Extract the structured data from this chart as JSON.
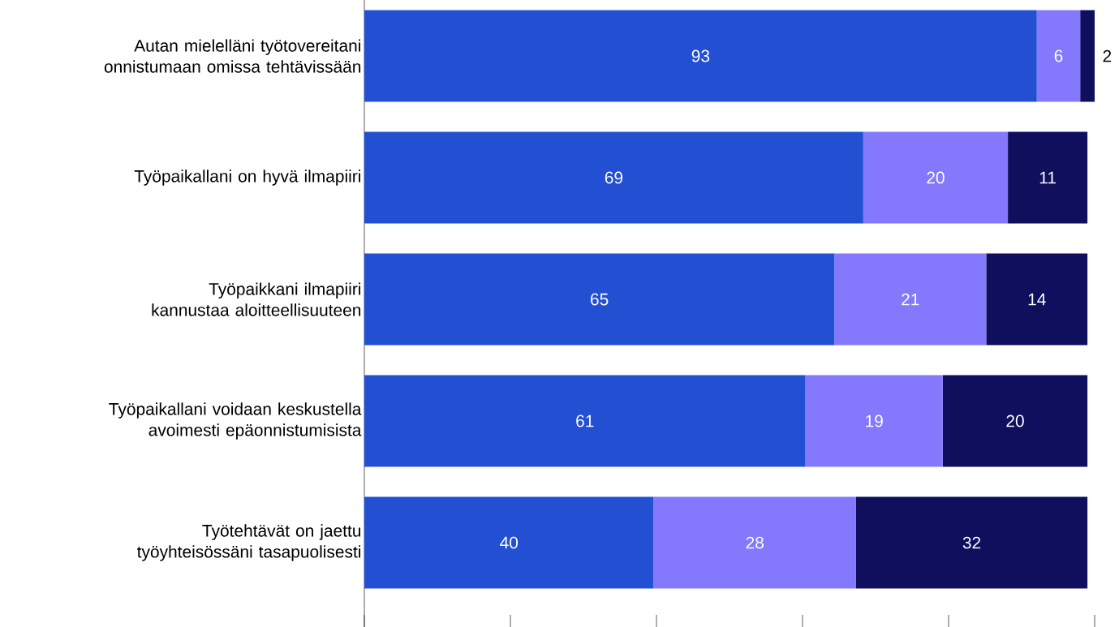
{
  "chart_data": {
    "type": "bar",
    "orientation": "horizontal",
    "stacked": true,
    "data_labels": true,
    "tick_labels": "y",
    "categories": [
      "Autan mielelläni työtovereitani onnistumaan omissa tehtävissään",
      "Työpaikallani on hyvä ilmapiiri",
      "Työpaikkani ilmapiiri kannustaa aloitteellisuuteen",
      "Työpaikallani voidaan keskustella avoimesti epäonnistumisista",
      "Työtehtävät on jaettu työyhteisössäni tasapuolisesti"
    ],
    "series": [
      {
        "color": "#2350d3",
        "values": [
          93,
          69,
          65,
          61,
          40
        ]
      },
      {
        "color": "#8479fc",
        "values": [
          6,
          20,
          21,
          19,
          28
        ]
      },
      {
        "color": "#0f0f5e",
        "values": [
          2,
          11,
          14,
          20,
          32
        ]
      }
    ]
  }
}
